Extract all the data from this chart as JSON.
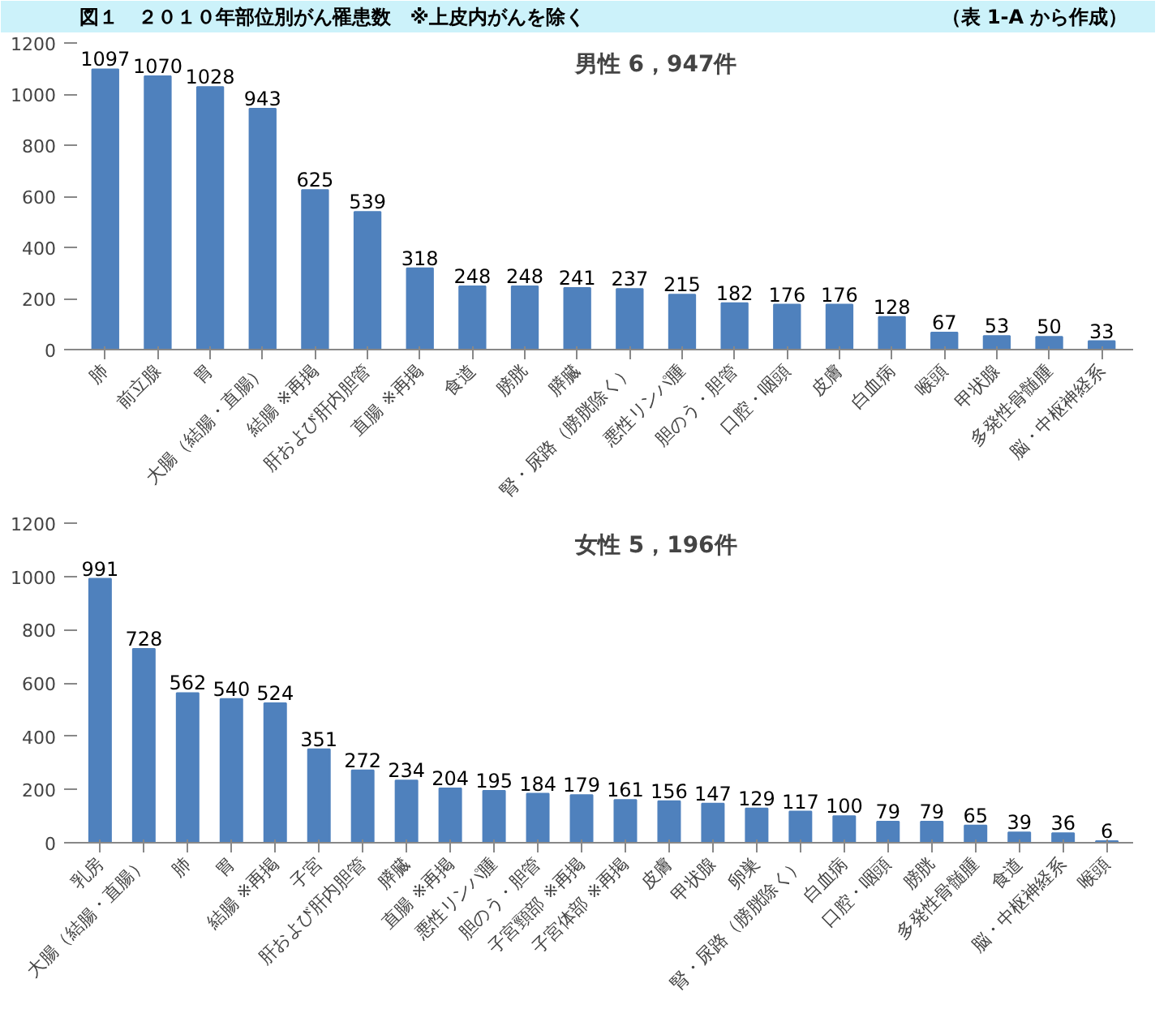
{
  "chart_data": [
    {
      "type": "bar",
      "title": "男性 6，947件",
      "annotations": [
        "図１　２０１０年部位別がん罹患数　※上皮内がんを除く",
        "（表 1-A から作成）"
      ],
      "categories": [
        "肺",
        "前立腺",
        "胃",
        "大腸（結腸・直腸）",
        "結腸 ※再掲",
        "肝および肝内胆管",
        "直腸 ※再掲",
        "食道",
        "膀胱",
        "膵臓",
        "腎・尿路（膀胱除く）",
        "悪性リンパ腫",
        "胆のう・胆管",
        "口腔・咽頭",
        "皮膚",
        "白血病",
        "喉頭",
        "甲状腺",
        "多発性骨髄腫",
        "脳・中枢神経系"
      ],
      "values": [
        1097,
        1070,
        1028,
        943,
        625,
        539,
        318,
        248,
        248,
        241,
        237,
        215,
        182,
        176,
        176,
        128,
        67,
        53,
        50,
        33
      ],
      "color": "#4f81bd",
      "ylim": [
        0,
        1200
      ],
      "yticks": [
        0,
        200,
        400,
        600,
        800,
        1000,
        1200
      ],
      "grid": false,
      "data_labels": true
    },
    {
      "type": "bar",
      "title": "女性 5，196件",
      "categories": [
        "乳房",
        "大腸（結腸・直腸）",
        "肺",
        "胃",
        "結腸 ※再掲",
        "子宮",
        "肝および肝内胆管",
        "膵臓",
        "直腸 ※再掲",
        "悪性リンパ腫",
        "胆のう・胆管",
        "子宮頸部 ※再掲",
        "子宮体部 ※再掲",
        "皮膚",
        "甲状腺",
        "卵巣",
        "腎・尿路（膀胱除く）",
        "白血病",
        "口腔・咽頭",
        "膀胱",
        "多発性骨髄腫",
        "食道",
        "脳・中枢神経系",
        "喉頭"
      ],
      "values": [
        991,
        728,
        562,
        540,
        524,
        351,
        272,
        234,
        204,
        195,
        184,
        179,
        161,
        156,
        147,
        129,
        117,
        100,
        79,
        79,
        65,
        39,
        36,
        6
      ],
      "color": "#4f81bd",
      "ylim": [
        0,
        1200
      ],
      "yticks": [
        0,
        200,
        400,
        600,
        800,
        1000,
        1200
      ],
      "grid": false,
      "data_labels": true
    }
  ]
}
